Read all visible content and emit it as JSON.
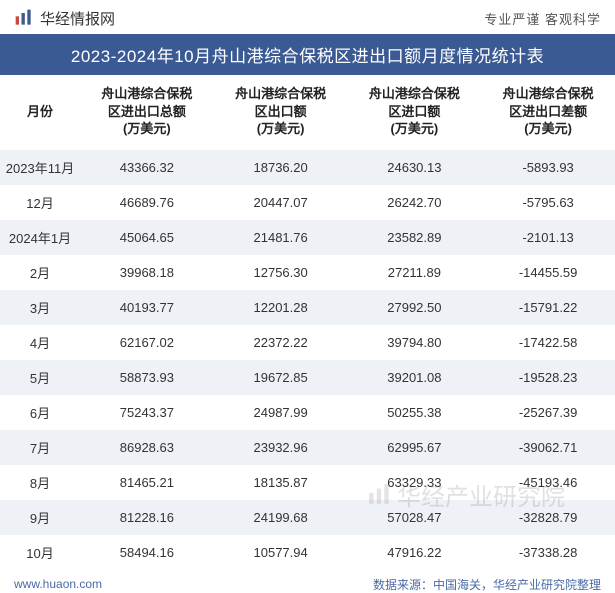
{
  "header": {
    "site_name": "华经情报网",
    "tagline": "专业严谨    客观科学",
    "logo_colors": {
      "red": "#c94a3b",
      "blue": "#3b5a93"
    }
  },
  "title": "2023-2024年10月舟山港综合保税区进出口额月度情况统计表",
  "columns": [
    "月份",
    "舟山港综合保税区进出口总额(万美元)",
    "舟山港综合保税区出口额(万美元)",
    "舟山港综合保税区进口额(万美元)",
    "舟山港综合保税区进出口差额(万美元)"
  ],
  "rows": [
    [
      "2023年11月",
      "43366.32",
      "18736.20",
      "24630.13",
      "-5893.93"
    ],
    [
      "12月",
      "46689.76",
      "20447.07",
      "26242.70",
      "-5795.63"
    ],
    [
      "2024年1月",
      "45064.65",
      "21481.76",
      "23582.89",
      "-2101.13"
    ],
    [
      "2月",
      "39968.18",
      "12756.30",
      "27211.89",
      "-14455.59"
    ],
    [
      "3月",
      "40193.77",
      "12201.28",
      "27992.50",
      "-15791.22"
    ],
    [
      "4月",
      "62167.02",
      "22372.22",
      "39794.80",
      "-17422.58"
    ],
    [
      "5月",
      "58873.93",
      "19672.85",
      "39201.08",
      "-19528.23"
    ],
    [
      "6月",
      "75243.37",
      "24987.99",
      "50255.38",
      "-25267.39"
    ],
    [
      "7月",
      "86928.63",
      "23932.96",
      "62995.67",
      "-39062.71"
    ],
    [
      "8月",
      "81465.21",
      "18135.87",
      "63329.33",
      "-45193.46"
    ],
    [
      "9月",
      "81228.16",
      "24199.68",
      "57028.47",
      "-32828.79"
    ],
    [
      "10月",
      "58494.16",
      "10577.94",
      "47916.22",
      "-37338.28"
    ]
  ],
  "footer": {
    "url": "www.huaon.com",
    "source": "数据来源：中国海关，华经产业研究院整理"
  },
  "watermark": "华经产业研究院",
  "style": {
    "title_bg": "#3b5a93",
    "title_color": "#ffffff",
    "row_even_bg": "#eef1f6",
    "row_odd_bg": "#ffffff",
    "footer_color": "#4a6aa5"
  }
}
